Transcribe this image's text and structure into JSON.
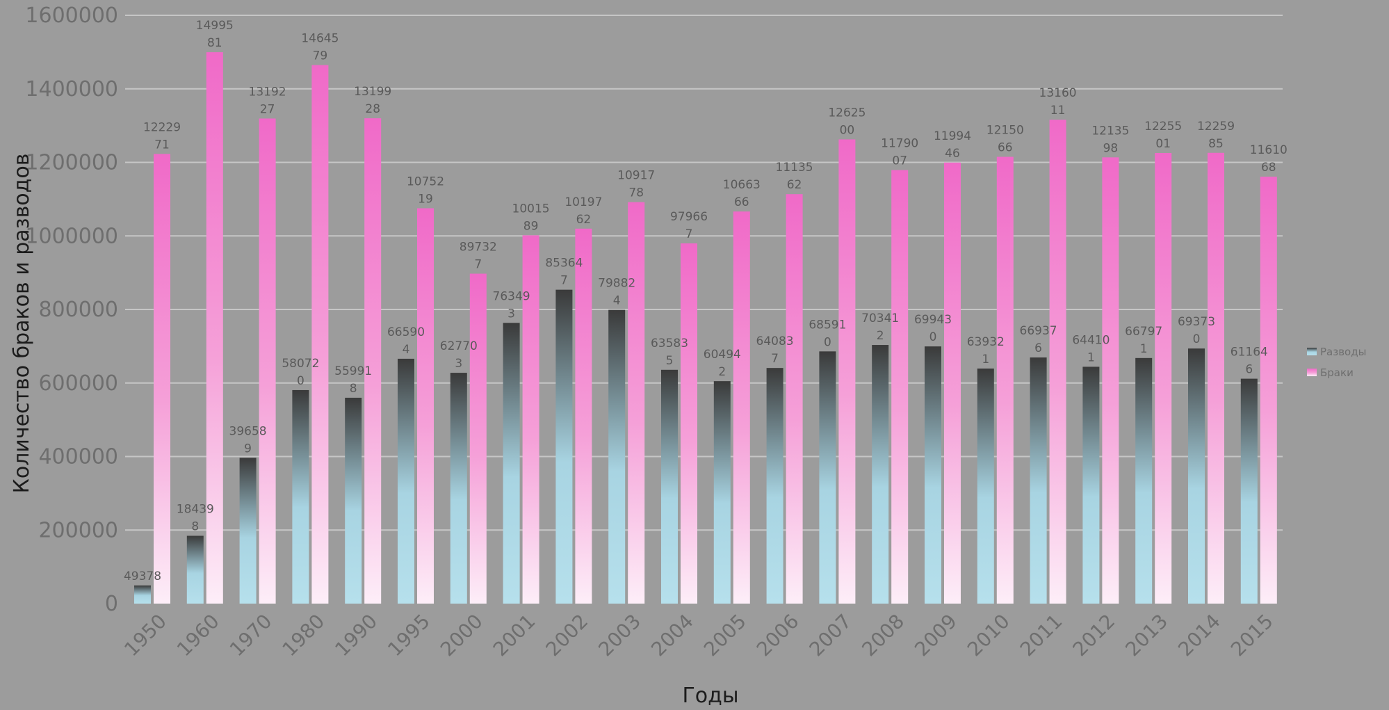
{
  "chart_data": {
    "type": "bar",
    "xlabel": "Годы",
    "ylabel": "Количество браков и разводов",
    "ylim": [
      0,
      1600000
    ],
    "yticks": [
      "0",
      "200000",
      "400000",
      "600000",
      "800000",
      "1000000",
      "1200000",
      "1400000",
      "1600000"
    ],
    "grid": true,
    "legend_position": "right",
    "categories": [
      "1950",
      "1960",
      "1970",
      "1980",
      "1990",
      "1995",
      "2000",
      "2001",
      "2002",
      "2003",
      "2004",
      "2005",
      "2006",
      "2007",
      "2008",
      "2009",
      "2010",
      "2011",
      "2012",
      "2013",
      "2014",
      "2015"
    ],
    "series": [
      {
        "name": "Разводы",
        "color_top": "#3a3a3a",
        "color_bottom": "#b6e0ec",
        "values": [
          49378,
          184398,
          396589,
          580720,
          559918,
          665904,
          627703,
          763493,
          853647,
          798824,
          635835,
          604942,
          640837,
          685910,
          703412,
          699430,
          639321,
          669376,
          644101,
          667971,
          693730,
          611646
        ],
        "labels": [
          [
            "49378"
          ],
          [
            "18439",
            "8"
          ],
          [
            "39658",
            "9"
          ],
          [
            "58072",
            "0"
          ],
          [
            "55991",
            "8"
          ],
          [
            "66590",
            "4"
          ],
          [
            "62770",
            "3"
          ],
          [
            "76349",
            "3"
          ],
          [
            "85364",
            "7"
          ],
          [
            "79882",
            "4"
          ],
          [
            "63583",
            "5"
          ],
          [
            "60494",
            "2"
          ],
          [
            "64083",
            "7"
          ],
          [
            "68591",
            "0"
          ],
          [
            "70341",
            "2"
          ],
          [
            "69943",
            "0"
          ],
          [
            "63932",
            "1"
          ],
          [
            "66937",
            "6"
          ],
          [
            "64410",
            "1"
          ],
          [
            "66797",
            "1"
          ],
          [
            "69373",
            "0"
          ],
          [
            "61164",
            "6"
          ]
        ]
      },
      {
        "name": "Браки",
        "color_top": "#f06ac8",
        "color_bottom": "#fdeef8",
        "values": [
          1222971,
          1499581,
          1319227,
          1464579,
          1319928,
          1075219,
          897327,
          1001589,
          1019762,
          1091778,
          979667,
          1066366,
          1113562,
          1262500,
          1179007,
          1199446,
          1215066,
          1316011,
          1213598,
          1225501,
          1225985,
          1161068
        ],
        "labels": [
          [
            "12229",
            "71"
          ],
          [
            "14995",
            "81"
          ],
          [
            "13192",
            "27"
          ],
          [
            "14645",
            "79"
          ],
          [
            "13199",
            "28"
          ],
          [
            "10752",
            "19"
          ],
          [
            "89732",
            "7"
          ],
          [
            "10015",
            "89"
          ],
          [
            "10197",
            "62"
          ],
          [
            "10917",
            "78"
          ],
          [
            "97966",
            "7"
          ],
          [
            "10663",
            "66"
          ],
          [
            "11135",
            "62"
          ],
          [
            "12625",
            "00"
          ],
          [
            "11790",
            "07"
          ],
          [
            "11994",
            "46"
          ],
          [
            "12150",
            "66"
          ],
          [
            "13160",
            "11"
          ],
          [
            "12135",
            "98"
          ],
          [
            "12255",
            "01"
          ],
          [
            "12259",
            "85"
          ],
          [
            "11610",
            "68"
          ]
        ]
      }
    ]
  }
}
